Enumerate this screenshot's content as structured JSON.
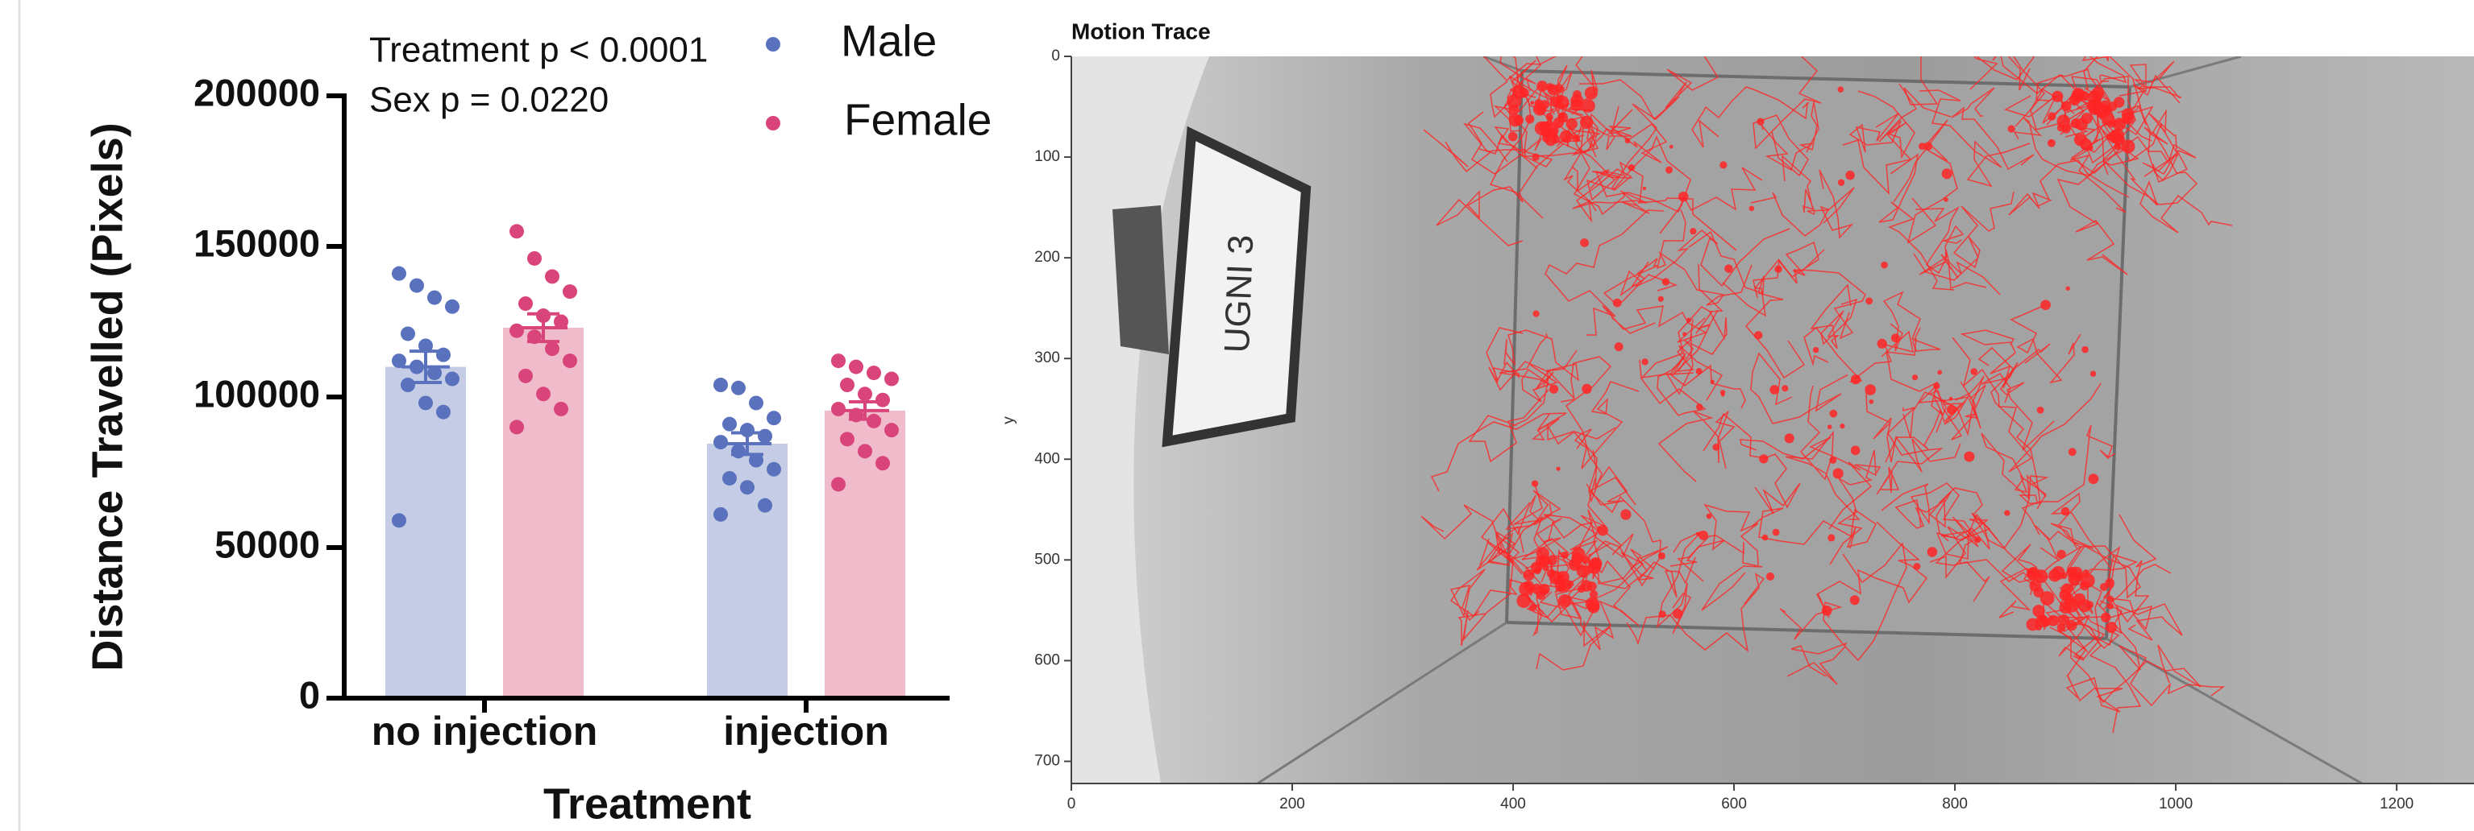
{
  "chart_data": [
    {
      "type": "bar",
      "y_label": "Distance Travelled (Pixels)",
      "x_label": "Treatment",
      "annotations": [
        "Treatment p < 0.0001",
        "Sex p = 0.0220"
      ],
      "categories": [
        "no injection",
        "injection"
      ],
      "series": [
        {
          "name": "Male",
          "color": "#5a72bd",
          "bar_color": "#c5cce6",
          "values": [
            110000,
            84500
          ],
          "errors": [
            5200,
            3600
          ],
          "points": [
            [
              141000,
              137000,
              133000,
              130000,
              121000,
              117000,
              114000,
              112000,
              110000,
              108000,
              106000,
              104000,
              98000,
              95000,
              59000
            ],
            [
              104000,
              103000,
              98000,
              93000,
              91000,
              89000,
              87000,
              85000,
              82000,
              79000,
              76000,
              73000,
              70000,
              64000,
              61000
            ]
          ]
        },
        {
          "name": "Female",
          "color": "#d9457a",
          "bar_color": "#f0bccb",
          "values": [
            123000,
            95500
          ],
          "errors": [
            4600,
            2900
          ],
          "points": [
            [
              155000,
              146000,
              140000,
              135000,
              131000,
              127000,
              125000,
              122000,
              120000,
              116000,
              112000,
              107000,
              101000,
              96000,
              90000
            ],
            [
              112000,
              110000,
              108000,
              106000,
              104000,
              101000,
              99000,
              96000,
              94000,
              92000,
              89000,
              86000,
              82000,
              78000,
              71000
            ]
          ]
        }
      ],
      "ylim": [
        0,
        200000
      ],
      "yticks": [
        0,
        50000,
        100000,
        150000,
        200000
      ]
    },
    {
      "type": "image",
      "title": "Motion Trace",
      "y_label": "y",
      "annotation": "UGNI 3",
      "xlim": [
        0,
        1270
      ],
      "xticks": [
        0,
        200,
        400,
        600,
        800,
        1000,
        1200
      ],
      "ylim": [
        0,
        722
      ],
      "yticks": [
        0,
        100,
        200,
        300,
        400,
        500,
        600,
        700
      ],
      "y_inverted": true,
      "trace_color": "#ff2424"
    }
  ]
}
